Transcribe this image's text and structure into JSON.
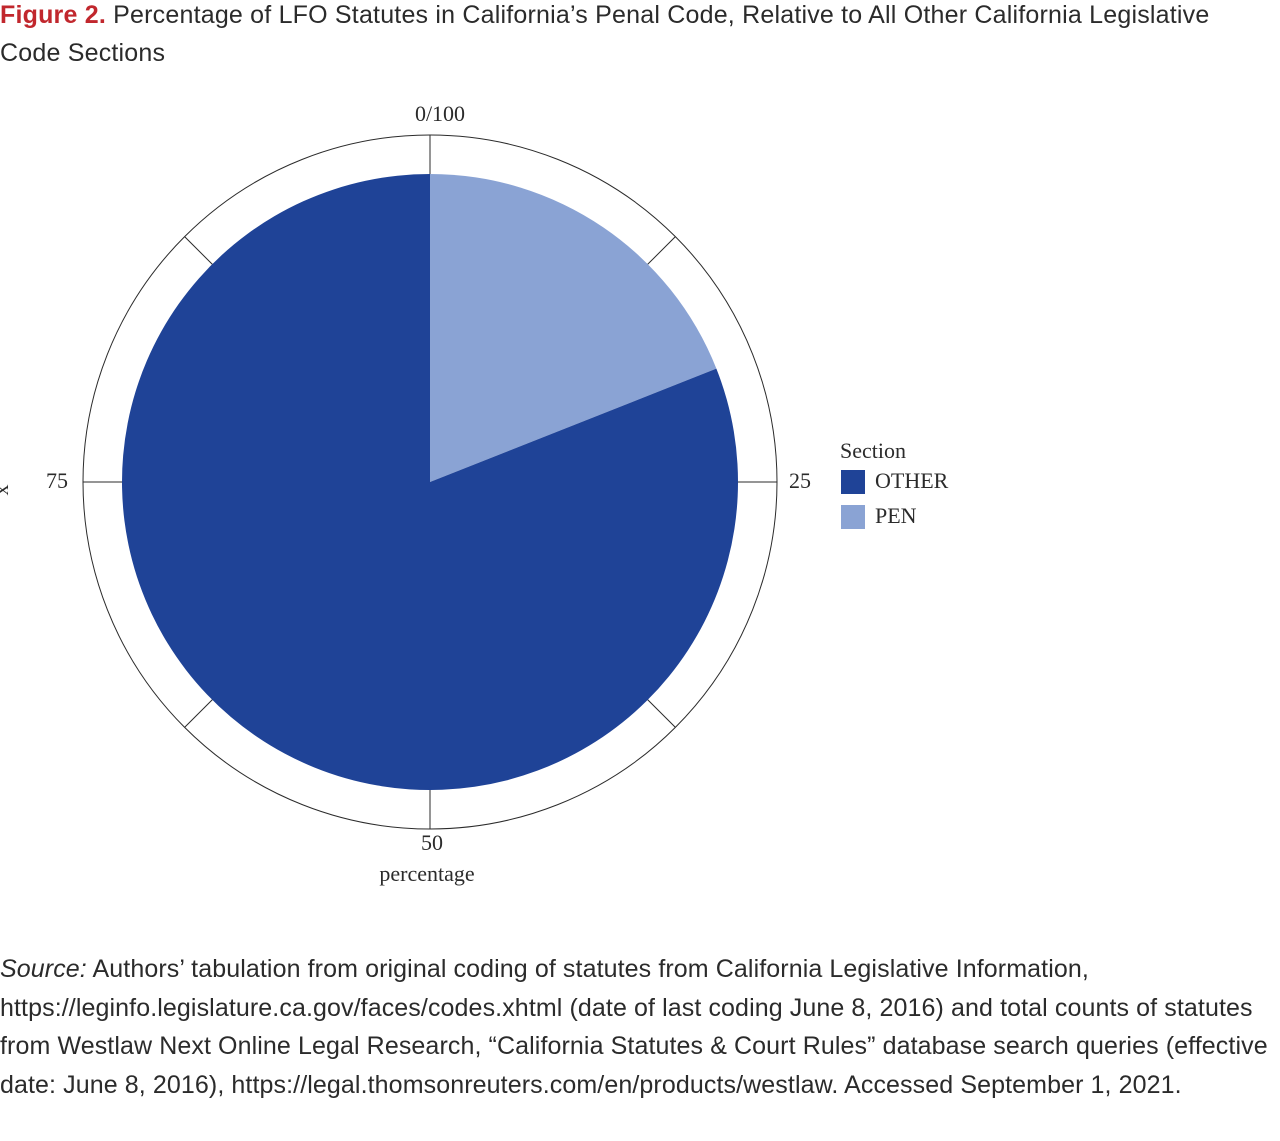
{
  "figure": {
    "label": "Figure 2.",
    "title": "Percentage of LFO Statutes in California’s Penal Code, Relative to All Other California Legislative Code Sections"
  },
  "chart_data": {
    "type": "pie",
    "series": [
      {
        "name": "PEN",
        "value": 19,
        "color": "#8aa3d4"
      },
      {
        "name": "OTHER",
        "value": 81,
        "color": "#1f4397"
      }
    ],
    "theta_ticks": [
      "0/100",
      "25",
      "50",
      "75"
    ],
    "theta_label": "percentage",
    "r_label": "x",
    "legend": {
      "title": "Section",
      "entries": [
        {
          "name": "OTHER",
          "color": "#1f4397"
        },
        {
          "name": "PEN",
          "color": "#8aa3d4"
        }
      ],
      "placement": "right"
    },
    "grid": true,
    "colors": {
      "other": "#1f4397",
      "pen": "#8aa3d4"
    }
  },
  "source": {
    "label": "Source:",
    "text": "Authors’ tabulation from original coding of statutes from California Legislative Information, https://leginfo.legislature.ca.gov/faces/codes.xhtml (date of last coding June 8, 2016) and total counts of statutes from Westlaw Next Online Legal Research, “California Statutes & Court Rules” database search queries (effective date: June 8, 2016), https://legal.thomsonreuters.com/en/products/westlaw. Accessed September 1, 2021."
  }
}
